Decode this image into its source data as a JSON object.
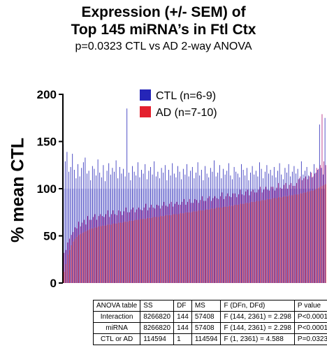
{
  "title_line1": "Expression (+/- SEM) of",
  "title_line2": "Top 145 miRNA’s in Ftl Ctx",
  "subtitle": "p=0.0323 CTL vs AD 2-way ANOVA",
  "colors": {
    "ctl": "#2525b8",
    "ad": "#e4202e",
    "overlap": "#b01878",
    "axis": "#000000"
  },
  "chart_data": {
    "type": "bar",
    "ylabel": "% mean CTL",
    "ylim": [
      0,
      200
    ],
    "yticks": [
      "0",
      "50",
      "100",
      "150",
      "200"
    ],
    "grid": false,
    "legend_position": "top-center",
    "series": [
      {
        "name": "CTL (n=6-9)",
        "values": [
          100,
          100,
          100,
          100,
          100,
          100,
          100,
          100,
          100,
          100,
          100,
          100,
          100,
          100,
          100,
          100,
          100,
          100,
          100,
          100,
          100,
          100,
          100,
          100,
          100,
          100,
          100,
          100,
          100,
          100,
          100,
          100,
          100,
          100,
          100,
          100,
          100,
          100,
          100,
          100,
          100,
          100,
          100,
          100,
          100,
          100,
          100,
          100,
          100,
          100,
          100,
          100,
          100,
          100,
          100,
          100,
          100,
          100,
          100,
          100,
          100,
          100,
          100,
          100,
          100,
          100,
          100,
          100,
          100,
          100,
          100,
          100,
          100,
          100,
          100,
          100,
          100,
          100,
          100,
          100,
          100,
          100,
          100,
          100,
          100,
          100,
          100,
          100,
          100,
          100,
          100,
          100,
          100,
          100,
          100,
          100,
          100,
          100,
          100,
          100,
          100,
          100,
          100,
          100,
          100,
          100,
          100,
          100,
          100,
          100,
          100,
          100,
          100,
          100,
          100,
          100,
          100,
          100,
          100,
          100,
          100,
          100,
          100,
          100,
          100,
          100,
          100,
          100,
          100,
          100,
          100,
          100,
          100,
          100,
          100,
          100,
          100,
          100,
          100,
          100,
          100,
          100,
          100,
          100,
          100
        ],
        "sem": [
          47,
          29,
          39,
          18,
          23,
          37,
          20,
          11,
          26,
          13,
          22,
          28,
          33,
          16,
          19,
          9,
          24,
          21,
          14,
          31,
          17,
          12,
          25,
          8,
          19,
          27,
          15,
          22,
          18,
          30,
          11,
          23,
          16,
          21,
          13,
          85,
          17,
          9,
          24,
          18,
          14,
          28,
          12,
          20,
          16,
          26,
          10,
          19,
          23,
          15,
          29,
          13,
          18,
          11,
          22,
          17,
          25,
          9,
          20,
          14,
          27,
          16,
          12,
          24,
          18,
          10,
          21,
          15,
          26,
          13,
          19,
          23,
          11,
          17,
          28,
          14,
          20,
          9,
          24,
          16,
          12,
          22,
          18,
          30,
          13,
          17,
          25,
          11,
          21,
          15,
          19,
          27,
          14,
          10,
          23,
          18,
          16,
          12,
          26,
          20,
          14,
          22,
          9,
          17,
          24,
          15,
          19,
          13,
          28,
          21,
          11,
          18,
          25,
          16,
          20,
          14,
          23,
          12,
          19,
          27,
          15,
          10,
          22,
          17,
          26,
          13,
          18,
          24,
          16,
          21,
          11,
          29,
          15,
          19,
          23,
          14,
          18,
          12,
          26,
          17,
          20,
          68,
          22,
          15,
          75
        ]
      },
      {
        "name": "AD (n=7-10)",
        "values": [
          12,
          20,
          30,
          35,
          40,
          44,
          47,
          49,
          51,
          52,
          53,
          54,
          55,
          56,
          57,
          58,
          58,
          59,
          59,
          60,
          60,
          61,
          61,
          61,
          62,
          62,
          62,
          63,
          63,
          63,
          64,
          64,
          64,
          65,
          65,
          65,
          66,
          66,
          66,
          67,
          67,
          67,
          68,
          68,
          68,
          68,
          69,
          69,
          69,
          70,
          70,
          70,
          70,
          71,
          71,
          71,
          72,
          72,
          72,
          72,
          73,
          73,
          73,
          73,
          74,
          74,
          74,
          75,
          75,
          75,
          75,
          76,
          76,
          76,
          77,
          77,
          77,
          77,
          78,
          78,
          78,
          79,
          79,
          79,
          80,
          80,
          80,
          80,
          81,
          81,
          81,
          82,
          82,
          82,
          83,
          83,
          83,
          84,
          84,
          84,
          85,
          85,
          85,
          86,
          86,
          86,
          87,
          87,
          87,
          88,
          88,
          88,
          89,
          89,
          89,
          90,
          90,
          90,
          91,
          91,
          91,
          92,
          92,
          92,
          93,
          93,
          93,
          94,
          94,
          94,
          95,
          95,
          96,
          96,
          97,
          97,
          98,
          98,
          99,
          100,
          101,
          102,
          103,
          104,
          105
        ],
        "sem": [
          20,
          15,
          13,
          12,
          11,
          10,
          12,
          9,
          14,
          8,
          11,
          13,
          7,
          15,
          10,
          9,
          12,
          14,
          8,
          11,
          13,
          10,
          9,
          12,
          15,
          8,
          11,
          14,
          10,
          9,
          13,
          12,
          8,
          11,
          15,
          10,
          9,
          12,
          14,
          8,
          11,
          13,
          10,
          9,
          12,
          16,
          8,
          11,
          14,
          10,
          9,
          13,
          12,
          8,
          11,
          15,
          10,
          9,
          12,
          14,
          8,
          11,
          13,
          10,
          9,
          12,
          15,
          8,
          11,
          14,
          10,
          9,
          13,
          12,
          8,
          11,
          15,
          10,
          9,
          12,
          14,
          8,
          11,
          13,
          10,
          9,
          12,
          16,
          8,
          11,
          14,
          10,
          9,
          13,
          12,
          8,
          11,
          15,
          10,
          9,
          12,
          14,
          8,
          11,
          13,
          10,
          9,
          12,
          15,
          8,
          11,
          14,
          10,
          9,
          13,
          12,
          8,
          11,
          15,
          10,
          9,
          12,
          14,
          8,
          11,
          13,
          10,
          9,
          12,
          16,
          18,
          14,
          15,
          17,
          13,
          16,
          19,
          15,
          17,
          22,
          20,
          23,
          76,
          25,
          20
        ]
      }
    ]
  },
  "anova_table": {
    "headers": [
      "ANOVA table",
      "SS",
      "DF",
      "MS",
      "F (DFn, DFd)",
      "P value"
    ],
    "rows": [
      [
        "Interaction",
        "8266820",
        "144",
        "57408",
        "F (144, 2361) = 2.298",
        "P<0.0001"
      ],
      [
        "miRNA",
        "8266820",
        "144",
        "57408",
        "F (144, 2361) = 2.298",
        "P<0.0001"
      ],
      [
        "CTL or AD",
        "114594",
        "1",
        "114594",
        "F (1, 2361) = 4.588",
        "P=0.0323"
      ]
    ]
  }
}
